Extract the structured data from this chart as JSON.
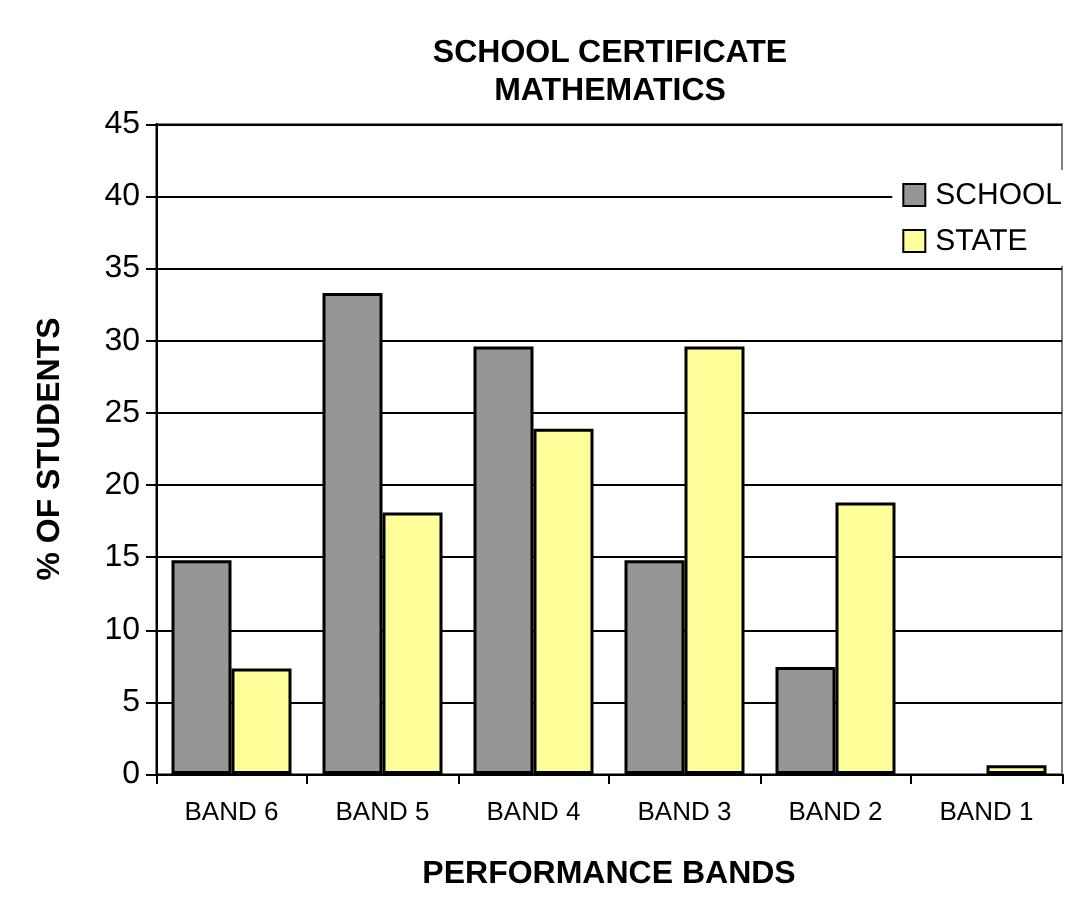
{
  "chart_data": {
    "type": "bar",
    "title": "SCHOOL CERTIFICATE\nMATHEMATICS",
    "xlabel": "PERFORMANCE BANDS",
    "ylabel": "% OF STUDENTS",
    "categories": [
      "BAND 6",
      "BAND 5",
      "BAND 4",
      "BAND 3",
      "BAND 2",
      "BAND 1"
    ],
    "series": [
      {
        "name": "SCHOOL",
        "color": "#969696",
        "values": [
          14.8,
          33.3,
          29.6,
          14.8,
          7.4,
          0
        ]
      },
      {
        "name": "STATE",
        "color": "#ffff99",
        "values": [
          7.3,
          18.1,
          23.9,
          29.6,
          18.8,
          0.6
        ]
      }
    ],
    "ylim": [
      0,
      45
    ],
    "yticks": [
      0,
      5,
      10,
      15,
      20,
      25,
      30,
      35,
      40,
      45
    ],
    "grid": "y",
    "legend": "top right"
  }
}
